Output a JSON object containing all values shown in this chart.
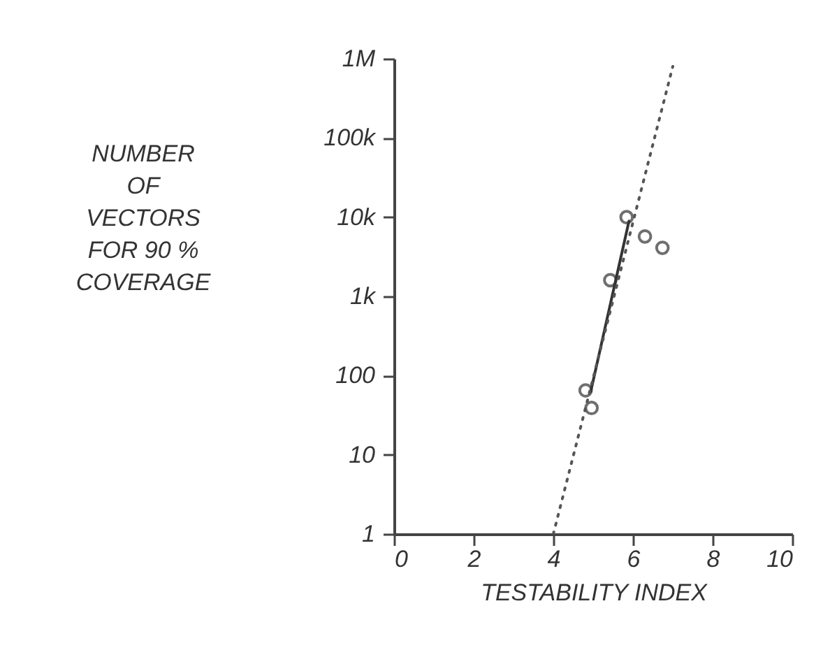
{
  "chart_data": {
    "type": "scatter",
    "xlabel": "TESTABILITY INDEX",
    "ylabel": "NUMBER\nOF\nVECTORS\nFOR 90 %\nCOVERAGE",
    "xlim": [
      0,
      10
    ],
    "xticks": [
      0,
      2,
      4,
      6,
      8,
      10
    ],
    "ylim": [
      1,
      1000000
    ],
    "yticks": [
      1,
      10,
      100,
      {
        "value": 1000,
        "label": "1k"
      },
      {
        "value": 10000,
        "label": "10k"
      },
      {
        "value": 100000,
        "label": "100k"
      },
      {
        "value": 1000000,
        "label": "1M"
      }
    ],
    "log": "y",
    "grid": false,
    "series": [
      {
        "marker": "circle",
        "color": "#333333",
        "x": [
          5.84,
          6.3,
          6.74,
          5.43,
          4.81,
          4.96
        ],
        "values": [
          10000,
          5700,
          4100,
          1600,
          65,
          39
        ]
      },
      {
        "type": "line",
        "line_style": "solid",
        "color": "#333333",
        "x": [
          4.94,
          5.9
        ],
        "values": [
          63,
          8900
        ]
      },
      {
        "type": "line",
        "line_style": "dotted",
        "color": "#555555",
        "x": [
          4,
          7
        ],
        "values": [
          1,
          800000
        ]
      }
    ]
  }
}
